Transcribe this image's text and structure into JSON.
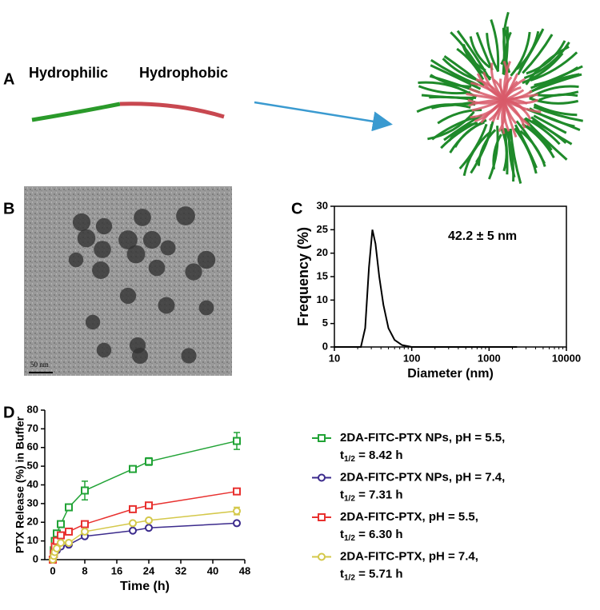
{
  "panels": [
    "A",
    "B",
    "C",
    "D"
  ],
  "diagram": {
    "left_label": "Hydrophilic",
    "right_label": "Hydrophobic"
  },
  "image": {
    "scale_bar": "50 nm"
  },
  "chart_data": [
    {
      "type": "line",
      "xlabel": "Diameter (nm)",
      "ylabel": "Frequency (%)",
      "annotation": "42.2 ± 5 nm",
      "xscale": "log",
      "xlim": [
        10,
        10000
      ],
      "xticks": [
        10,
        100,
        1000,
        10000
      ],
      "ylim": [
        0,
        30
      ],
      "yticks": [
        0,
        5,
        10,
        15,
        20,
        25,
        30
      ],
      "x": [
        10,
        22,
        25,
        28,
        31,
        34,
        38,
        43,
        50,
        60,
        75,
        100,
        2300
      ],
      "series": [
        {
          "color": "#000000",
          "values": [
            0,
            0,
            4,
            17,
            25,
            22,
            15,
            9,
            4,
            1.5,
            0.4,
            0,
            0
          ]
        }
      ]
    },
    {
      "type": "errorline",
      "xlabel": "Time (h)",
      "ylabel": "PTX Release (%) in Buffer",
      "xlim": [
        -2,
        48
      ],
      "xticks": [
        0,
        8,
        16,
        24,
        32,
        40,
        48
      ],
      "ylim": [
        0,
        80
      ],
      "yticks": [
        0,
        10,
        20,
        30,
        40,
        50,
        60,
        70,
        80
      ],
      "half_life_symbol": "t",
      "half_life_subscript": "1/2",
      "x": [
        0,
        0.25,
        0.5,
        1,
        2,
        4,
        8,
        20,
        24,
        46
      ],
      "series": [
        {
          "name": "2DA-FITC-PTX NPs, pH = 5.5,",
          "half_life": " = 8.42 h",
          "color": "#21a336",
          "marker": "square",
          "values": [
            0,
            5,
            10,
            14,
            19,
            28,
            37,
            48.5,
            52.5,
            63.5
          ],
          "errors": [
            0,
            1,
            1,
            1,
            1,
            1,
            5,
            1,
            2,
            4.5
          ]
        },
        {
          "name": "2DA-FITC-PTX NPs, pH = 7.4,",
          "half_life": " = 7.31 h",
          "color": "#3b2a8c",
          "marker": "circle",
          "values": [
            0,
            2,
            4,
            5,
            7,
            8,
            12.5,
            15.5,
            17,
            19.5
          ],
          "errors": [
            0,
            0.5,
            0.5,
            0.5,
            0.5,
            0.5,
            1,
            1,
            1,
            1
          ]
        },
        {
          "name": "2DA-FITC-PTX, pH = 5.5,",
          "half_life": " = 6.30 h",
          "color": "#e8312f",
          "marker": "square",
          "values": [
            0,
            3,
            7,
            10,
            13,
            15,
            19,
            27,
            29,
            36.5
          ],
          "errors": [
            0,
            1,
            1,
            1,
            1,
            1,
            1.5,
            1.5,
            1,
            1.5
          ]
        },
        {
          "name": "2DA-FITC-PTX, pH = 7.4,",
          "half_life": " = 5.71 h",
          "color": "#d4c84a",
          "marker": "circle",
          "values": [
            0,
            2,
            4,
            6,
            9,
            9,
            15,
            19.5,
            21,
            26
          ],
          "errors": [
            0,
            0.5,
            0.5,
            0.5,
            0.5,
            0.5,
            1,
            1,
            1,
            2
          ]
        }
      ]
    }
  ]
}
